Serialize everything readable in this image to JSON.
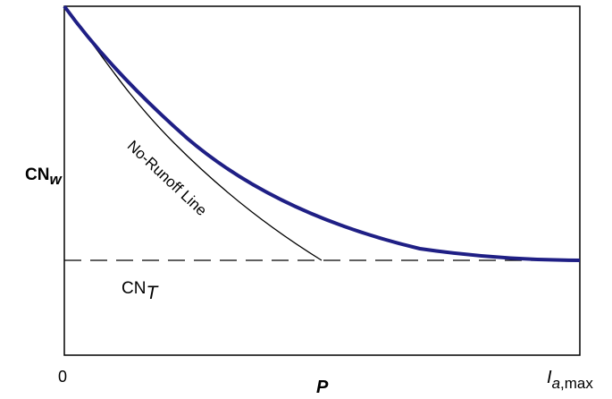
{
  "diagram": {
    "y_axis_label": "CN",
    "y_axis_label_subscript": "w",
    "x_axis_label": "P",
    "x_origin_label": "0",
    "x_max_label": "I",
    "x_max_label_subscript_italic": "a",
    "x_max_label_subscript": ",max",
    "reference_line_label": "CN",
    "reference_line_label_subscript": "T",
    "line_label": "No-Runoff Line",
    "colors": {
      "main_curve": "#1f1f85",
      "lines": "#000000"
    },
    "elements": {
      "main_curve": "thick blue curve decaying to CN_T",
      "no_runoff_line": "thin black curve meeting CN_T",
      "reference_line": "dashed horizontal line at CN_T"
    }
  }
}
